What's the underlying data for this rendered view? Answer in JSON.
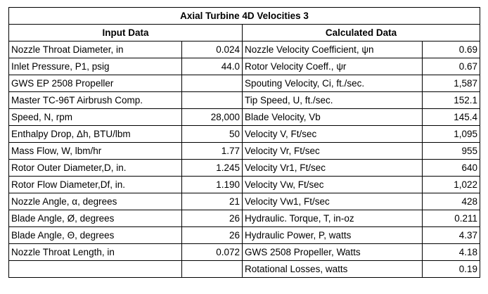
{
  "title": "Axial Turbine 4D Velocities 3",
  "headers": {
    "input": "Input Data",
    "calculated": "Calculated Data"
  },
  "table": {
    "rows": [
      {
        "label": "Nozzle Throat Diameter, in",
        "value": "0.024",
        "calc_label": "Nozzle Velocity Coefficient, ψn",
        "calc_value": "0.69"
      },
      {
        "label": "Inlet Pressure, P1, psig",
        "value": "44.0",
        "calc_label": "Rotor Velocity Coeff., ψr",
        "calc_value": "0.67"
      },
      {
        "label": "GWS EP 2508 Propeller",
        "calc_label": "Spouting Velocity, Ci, ft./sec.",
        "calc_value": "1,587"
      },
      {
        "label": "Master TC-96T Airbrush Comp.",
        "calc_label": "Tip Speed, U, ft./sec.",
        "calc_value": "152.1"
      },
      {
        "label": "Speed, N, rpm",
        "value": "28,000",
        "calc_label": "Blade Velocity, Vb",
        "calc_value": "145.4"
      },
      {
        "label": "Enthalpy Drop, Δh, BTU/lbm",
        "value": "50",
        "calc_label": "Velocity V, Ft/sec",
        "calc_value": "1,095"
      },
      {
        "label": "Mass Flow, W, lbm/hr",
        "value": "1.77",
        "calc_label": "Velocity Vr, Ft/sec",
        "calc_value": "955"
      },
      {
        "label": "Rotor Outer Diameter,D, in.",
        "value": "1.245",
        "calc_label": "Velocity Vr1, Ft/sec",
        "calc_value": "640"
      },
      {
        "label": "Rotor Flow Diameter,Df, in.",
        "value": "1.190",
        "calc_label": "Velocity Vw, Ft/sec",
        "calc_value": "1,022"
      },
      {
        "label": "Nozzle Angle, α, degrees",
        "value": "21",
        "calc_label": "Velocity Vw1, Ft/sec",
        "calc_value": "428"
      },
      {
        "label": "Blade Angle, Ø, degrees",
        "value": "26",
        "calc_label": "Hydraulic. Torque, T, in-oz",
        "calc_value": "0.211"
      },
      {
        "label": "Blade Angle, Θ, degrees",
        "value": "26",
        "calc_label": "Hydraulic Power, P, watts",
        "calc_value": "4.37"
      },
      {
        "label": "Nozzle Throat Length, in",
        "value": "0.072",
        "calc_label": "GWS 2508 Propeller, Watts",
        "calc_value": "4.18"
      },
      {
        "calc_label": "Rotational Losses, watts",
        "calc_value": "0.19"
      }
    ]
  }
}
